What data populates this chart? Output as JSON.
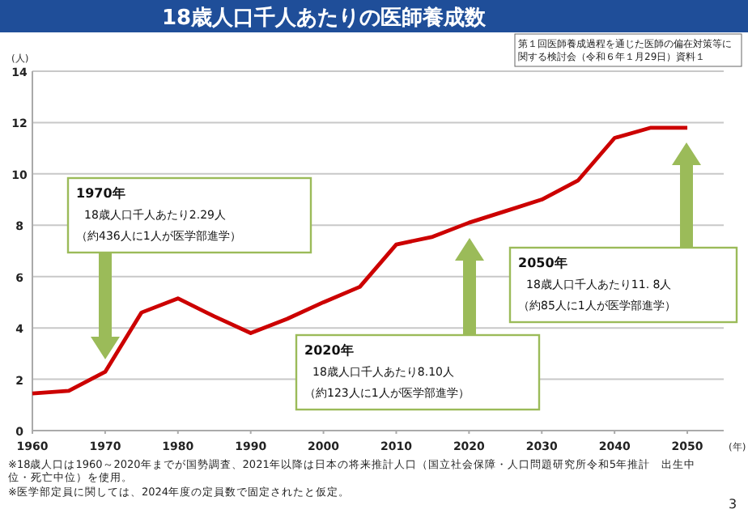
{
  "chart_data": {
    "type": "line",
    "title": "18歳人口千人あたりの医師養成数",
    "ylabel": "(人)",
    "xlabel": "(年)",
    "x": [
      1960,
      1965,
      1970,
      1975,
      1980,
      1985,
      1990,
      1995,
      2000,
      2005,
      2010,
      2015,
      2020,
      2025,
      2030,
      2035,
      2040,
      2045,
      2050
    ],
    "series": [
      {
        "color": "#cc0000",
        "values": [
          1.45,
          1.55,
          2.29,
          4.6,
          5.15,
          4.45,
          3.8,
          4.35,
          5.0,
          5.6,
          7.25,
          7.55,
          8.1,
          8.55,
          9.0,
          9.75,
          11.4,
          11.8,
          11.8
        ]
      }
    ],
    "xlim": [
      1960,
      2055
    ],
    "xticks": [
      1960,
      1970,
      1980,
      1990,
      2000,
      2010,
      2020,
      2030,
      2040,
      2050
    ],
    "ylim": [
      0,
      14
    ],
    "yticks": [
      0,
      2,
      4,
      6,
      8,
      10,
      12,
      14
    ],
    "grid": "y",
    "marker": "none",
    "line_style": "solid",
    "annotations": [
      "1970年",
      "18歳人口千人あたり2.29人",
      "（約436人に1人が医学部進学）",
      "2020年",
      "18歳人口千人あたり8.10人",
      "（約123人に1人が医学部進学）",
      "2050年",
      "18歳人口千人あたり11. 8人",
      "（約85人に1人が医学部進学）",
      "第１回医師養成過程を通じた医師の偏在対策等に関する検討会（令和６年１月29日）資料１",
      "※18歳人口は1960～2020年までが国勢調査、2021年以降は日本の将来推計人口（国立社会保障・人口問題研究所令和5年推計　出生中位・死亡中位）を使用。",
      "※医学部定員に関しては、2024年度の定員数で固定されたと仮定。",
      "3"
    ]
  }
}
